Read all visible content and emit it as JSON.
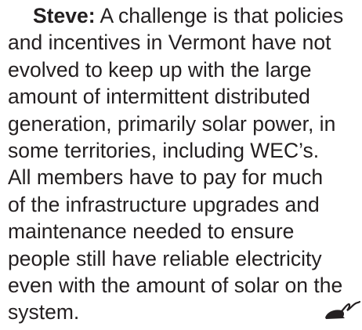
{
  "paragraph": {
    "speaker": "Steve:",
    "lines": [
      "A challenge is that policies",
      "and incentives in Vermont have not",
      "evolved to keep up with the large",
      "amount of intermittent distributed",
      "generation, primarily solar power, in",
      "some territories, including WEC’s.",
      "All members have to pay for much",
      "of the infrastructure upgrades and",
      "maintenance needed to ensure",
      "people still have reliable electricity",
      "even with the amount of solar on the",
      "system."
    ]
  }
}
